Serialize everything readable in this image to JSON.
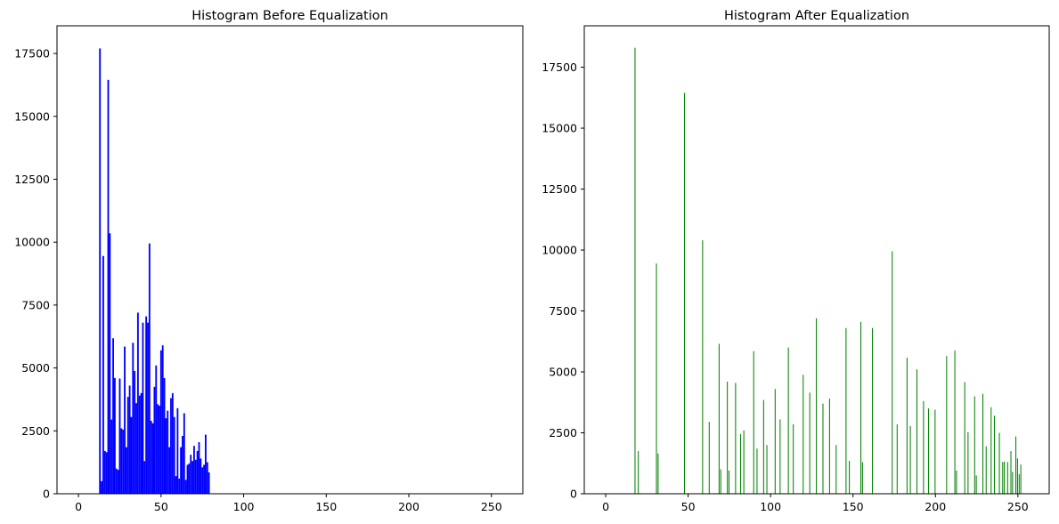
{
  "chart_data": [
    {
      "type": "bar",
      "title": "Histogram Before Equalization",
      "xlabel": "",
      "ylabel": "",
      "xlim": [
        -13,
        269
      ],
      "ylim": [
        0,
        18600
      ],
      "xticks": [
        0,
        50,
        100,
        150,
        200,
        250
      ],
      "yticks": [
        0,
        2500,
        5000,
        7500,
        10000,
        12500,
        15000,
        17500
      ],
      "color": "#0000ff",
      "grid": false,
      "legend": "none",
      "series": [
        {
          "x": [
            13,
            14,
            15,
            16,
            17,
            18,
            19,
            20,
            21,
            22,
            23,
            24,
            25,
            26,
            27,
            28,
            29,
            30,
            31,
            32,
            33,
            34,
            35,
            36,
            37,
            38,
            39,
            40,
            41,
            42,
            43,
            44,
            45,
            46,
            47,
            48,
            49,
            50,
            51,
            52,
            53,
            54,
            55,
            56,
            57,
            58,
            59,
            60,
            61,
            62,
            63,
            64,
            65,
            66,
            67,
            68,
            69,
            70,
            71,
            72,
            73,
            74,
            75,
            76,
            77,
            78,
            79
          ],
          "values": [
            17700,
            500,
            9450,
            1700,
            1650,
            16450,
            10350,
            2950,
            6180,
            4600,
            1000,
            950,
            4580,
            2600,
            2550,
            5850,
            1850,
            3850,
            4300,
            3050,
            6000,
            4880,
            3600,
            7200,
            3900,
            4000,
            6800,
            1300,
            7050,
            6800,
            9950,
            2900,
            2800,
            4250,
            5100,
            3560,
            3500,
            5700,
            5900,
            4600,
            3000,
            3300,
            1850,
            3800,
            4000,
            3050,
            700,
            3400,
            600,
            1850,
            2300,
            3200,
            550,
            1150,
            1200,
            1550,
            1300,
            1900,
            1350,
            1700,
            2050,
            1400,
            1050,
            1150,
            2350,
            1250,
            850
          ]
        }
      ]
    },
    {
      "type": "bar",
      "title": "Histogram After Equalization",
      "xlabel": "",
      "ylabel": "",
      "xlim": [
        -13,
        269
      ],
      "ylim": [
        0,
        19200
      ],
      "xticks": [
        0,
        50,
        100,
        150,
        200,
        250
      ],
      "yticks": [
        0,
        2500,
        5000,
        7500,
        10000,
        12500,
        15000,
        17500
      ],
      "color": "#008000",
      "grid": false,
      "legend": "none",
      "series": [
        {
          "x": [
            18,
            20,
            31,
            32,
            48,
            59,
            63,
            69,
            70,
            74,
            75,
            79,
            82,
            84,
            90,
            92,
            96,
            98,
            103,
            106,
            111,
            114,
            120,
            124,
            128,
            132,
            136,
            140,
            146,
            148,
            155,
            156,
            162,
            174,
            177,
            183,
            185,
            189,
            193,
            196,
            200,
            207,
            212,
            213,
            218,
            220,
            224,
            225,
            229,
            231,
            234,
            236,
            239,
            241,
            242,
            244,
            246,
            247,
            249,
            250,
            251,
            252
          ],
          "values": [
            18300,
            1750,
            9450,
            1650,
            16450,
            10400,
            2950,
            6150,
            1000,
            4600,
            950,
            4550,
            2450,
            2600,
            5850,
            1850,
            3850,
            2000,
            4300,
            3050,
            6000,
            2850,
            4880,
            4150,
            7200,
            3700,
            3900,
            2000,
            6800,
            1350,
            7050,
            1300,
            6800,
            9950,
            2850,
            5580,
            2780,
            5100,
            3800,
            3500,
            3450,
            5650,
            5880,
            950,
            4580,
            2530,
            4000,
            750,
            4100,
            1950,
            3550,
            3200,
            2500,
            1300,
            1320,
            1300,
            1750,
            900,
            2350,
            1450,
            800,
            1200
          ]
        }
      ]
    }
  ]
}
